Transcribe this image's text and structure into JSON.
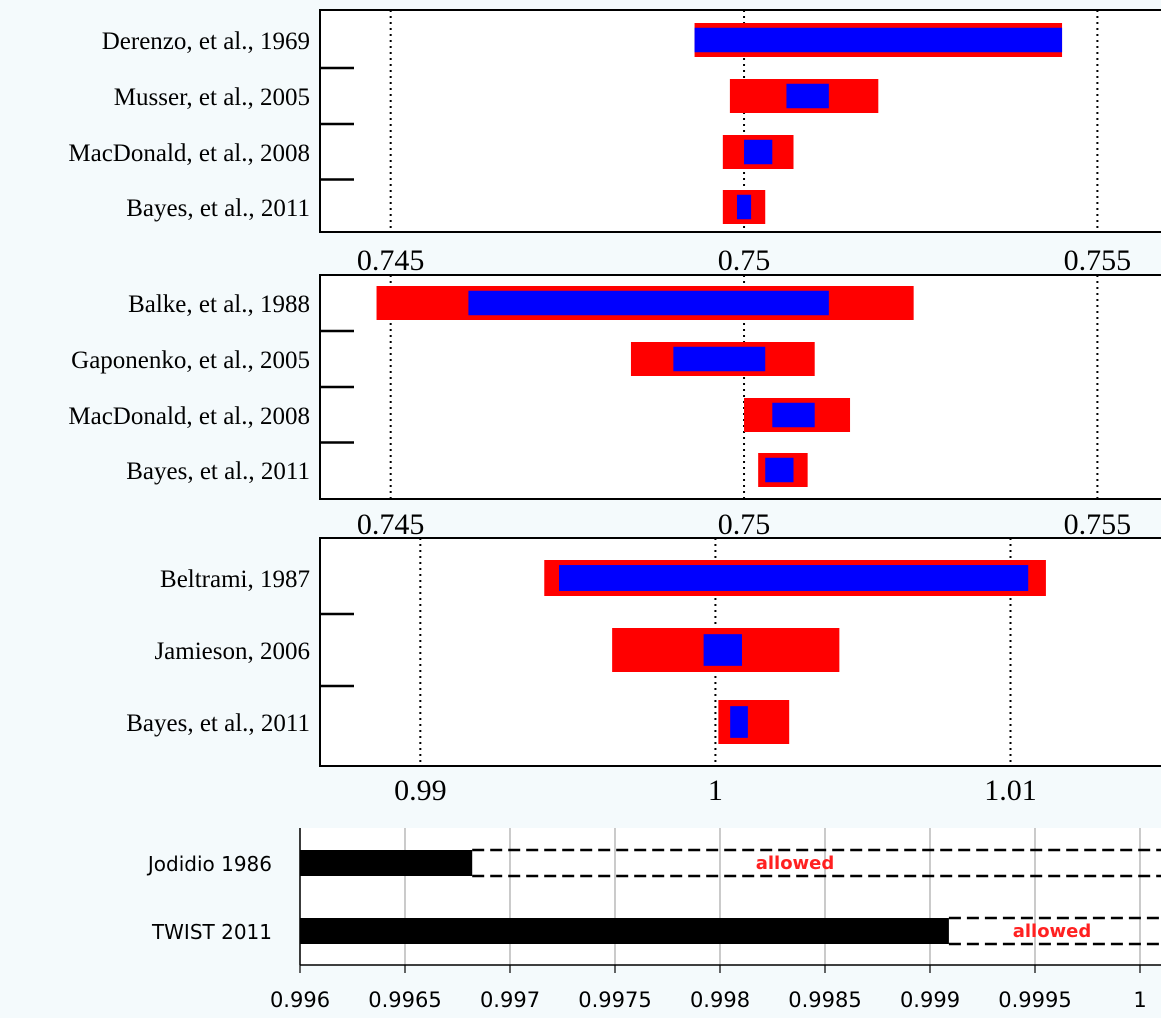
{
  "colors": {
    "outer": "#ff0000",
    "inner": "#0000ff",
    "bar": "#000000",
    "allowed": "#ff2020",
    "frame": "#000000",
    "background": "#f4fafc",
    "panel_bg": "#ffffff"
  },
  "chart_data": [
    {
      "type": "bar",
      "orientation": "horizontal",
      "title": "",
      "xlabel": "",
      "ylabel": "",
      "grid": "vertical dotted",
      "xlim": [
        0.744,
        0.7559
      ],
      "xticks": [
        0.745,
        0.75,
        0.755
      ],
      "tick_labels": [
        "0.745",
        "0.75",
        "0.755"
      ],
      "categories": [
        "Derenzo, et al., 1969",
        "Musser, et al., 2005",
        "MacDonald, et al., 2008",
        "Bayes, et al., 2011"
      ],
      "series": [
        {
          "values": [
            [
              0.7493,
              0.7545
            ],
            [
              0.7498,
              0.7519
            ],
            [
              0.7497,
              0.7507
            ],
            [
              0.7497,
              0.7503
            ]
          ]
        },
        {
          "values": [
            [
              0.7493,
              0.7545
            ],
            [
              0.7506,
              0.7512
            ],
            [
              0.75,
              0.7504
            ],
            [
              0.7499,
              0.7501
            ]
          ]
        }
      ]
    },
    {
      "type": "bar",
      "orientation": "horizontal",
      "title": "",
      "xlabel": "",
      "ylabel": "",
      "grid": "vertical dotted",
      "xlim": [
        0.744,
        0.7559
      ],
      "xticks": [
        0.745,
        0.75,
        0.755
      ],
      "tick_labels": [
        "0.745",
        "0.75",
        "0.755"
      ],
      "categories": [
        "Balke, et al., 1988",
        "Gaponenko, et al., 2005",
        "MacDonald, et al., 2008",
        "Bayes, et al., 2011"
      ],
      "series": [
        {
          "values": [
            [
              0.7448,
              0.7524
            ],
            [
              0.7484,
              0.751
            ],
            [
              0.75,
              0.7515
            ],
            [
              0.7502,
              0.7509
            ]
          ]
        },
        {
          "values": [
            [
              0.7461,
              0.7512
            ],
            [
              0.749,
              0.7503
            ],
            [
              0.7504,
              0.751
            ],
            [
              0.7503,
              0.7507
            ]
          ]
        }
      ]
    },
    {
      "type": "bar",
      "orientation": "horizontal",
      "title": "",
      "xlabel": "",
      "ylabel": "",
      "grid": "vertical dotted",
      "xlim": [
        0.9866,
        1.0151
      ],
      "xticks": [
        0.99,
        1,
        1.01
      ],
      "tick_labels": [
        "0.99",
        "1",
        "1.01"
      ],
      "categories": [
        "Beltrami, 1987",
        "Jamieson, 2006",
        "Bayes, et al., 2011"
      ],
      "series": [
        {
          "values": [
            [
              0.9942,
              1.0112
            ],
            [
              0.9965,
              1.0042
            ],
            [
              1.0001,
              1.0025
            ]
          ]
        },
        {
          "values": [
            [
              0.9947,
              1.0106
            ],
            [
              0.9996,
              1.0009
            ],
            [
              1.0005,
              1.0011
            ]
          ]
        }
      ]
    },
    {
      "type": "bar",
      "orientation": "horizontal",
      "title": "",
      "xlabel": "",
      "ylabel": "",
      "grid": "vertical solid",
      "xlim": [
        0.996,
        1
      ],
      "xticks": [
        0.996,
        0.9965,
        0.997,
        0.9975,
        0.998,
        0.9985,
        0.999,
        0.9995,
        1
      ],
      "tick_labels": [
        "0.996",
        "0.9965",
        "0.997",
        "0.9975",
        "0.998",
        "0.9985",
        "0.999",
        "0.9995",
        "1"
      ],
      "categories": [
        "Jodidio 1986",
        "TWIST 2011"
      ],
      "values": [
        0.99682,
        0.99909
      ],
      "annotations": [
        "allowed",
        "allowed"
      ]
    }
  ]
}
